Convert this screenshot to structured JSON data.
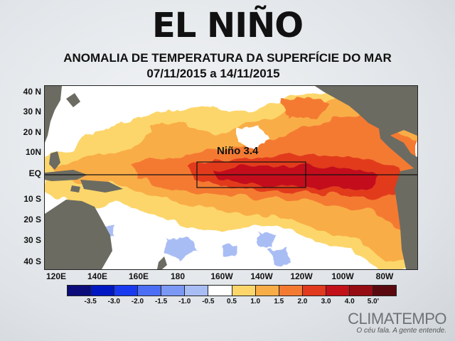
{
  "header": {
    "title": "EL NIÑO",
    "subtitle": "ANOMALIA DE TEMPERATURA DA SUPERFÍCIE DO MAR",
    "date_range": "07/11/2015 a 14/11/2015"
  },
  "map": {
    "latitude_labels": [
      "40 N",
      "30 N",
      "20 N",
      "10N",
      "EQ",
      "10 S",
      "20 S",
      "30 S",
      "40 S"
    ],
    "longitude_labels": [
      "120E",
      "140E",
      "160E",
      "180",
      "160W",
      "140W",
      "120W",
      "100W",
      "80W"
    ],
    "region_label": "Niño 3.4",
    "colors": {
      "land": "#6b6b62",
      "ocean_neutral": "#ffffff",
      "warm_light": "#fbd36a",
      "warm_mid": "#f8ad45",
      "warm_orange": "#f07a30",
      "warm_red": "#e03a1c",
      "warm_deep": "#c1121a",
      "cool_light": "#9fb4f0"
    }
  },
  "legend": {
    "labels": [
      "-3.5",
      "-3.0",
      "-2.0",
      "-1.5",
      "-1.0",
      "-0.5",
      "0.5",
      "1.0",
      "1.5",
      "2.0",
      "3.0",
      "4.0",
      "5.0'"
    ],
    "colors": [
      "#0c0c7a",
      "#0018c4",
      "#1a3af0",
      "#4c6ef4",
      "#7b98f4",
      "#a9bdf5",
      "#ffffff",
      "#fcd66b",
      "#f9ad47",
      "#f47a32",
      "#e13a1e",
      "#c3111a",
      "#960c13",
      "#5a0a0e"
    ]
  },
  "brand": {
    "name": "CLIMATEMPO",
    "tagline": "O céu fala. A gente entende."
  }
}
